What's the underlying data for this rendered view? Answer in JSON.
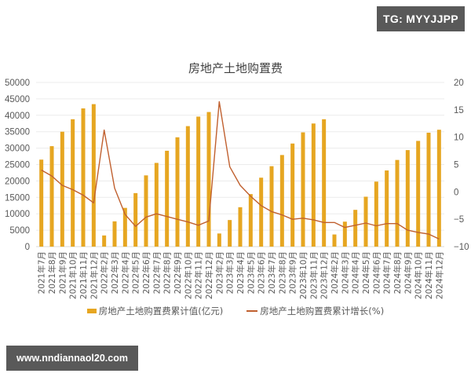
{
  "badges": {
    "top_right": "TG: MYYJJPP",
    "bottom_left": "www.nndiannaol20.com"
  },
  "chart_data": {
    "type": "bar",
    "title": "房地产土地购置费",
    "xlabel": "",
    "ylabel": "",
    "ylim": [
      0,
      50000
    ],
    "y2lim": [
      -10,
      20
    ],
    "left_ticks": [
      0,
      5000,
      10000,
      15000,
      20000,
      25000,
      30000,
      35000,
      40000,
      45000,
      50000
    ],
    "right_ticks": [
      -10,
      -5,
      0,
      5,
      10,
      15,
      20
    ],
    "grid": true,
    "legend_position": "bottom",
    "categories": [
      "2021年7月",
      "2021年8月",
      "2021年9月",
      "2021年10月",
      "2021年11月",
      "2021年12月",
      "2022年2月",
      "2022年3月",
      "2022年4月",
      "2022年5月",
      "2022年6月",
      "2022年7月",
      "2022年8月",
      "2022年9月",
      "2022年10月",
      "2022年11月",
      "2022年12月",
      "2023年2月",
      "2023年3月",
      "2023年4月",
      "2023年5月",
      "2023年6月",
      "2023年7月",
      "2023年8月",
      "2023年9月",
      "2023年10月",
      "2023年11月",
      "2023年12月",
      "2024年2月",
      "2024年3月",
      "2024年4月",
      "2024年5月",
      "2024年6月",
      "2024年7月",
      "2024年8月",
      "2024年9月",
      "2024年10月",
      "2024年11月",
      "2024年12月"
    ],
    "series": [
      {
        "name": "房地产土地购置费累计值(亿元)",
        "type": "bar",
        "axis": "left",
        "color": "#e6a621",
        "values": [
          26500,
          30600,
          35000,
          38800,
          42100,
          43400,
          3400,
          7700,
          11800,
          16300,
          21700,
          25500,
          29200,
          33300,
          36700,
          39600,
          41000,
          4000,
          8100,
          12000,
          16000,
          21000,
          24500,
          27900,
          31400,
          34800,
          37500,
          38800,
          3700,
          7600,
          11200,
          15200,
          19800,
          23200,
          26400,
          29400,
          32200,
          34700,
          35600
        ]
      },
      {
        "name": "房地产土地购置费累计增长(%)",
        "type": "line",
        "axis": "right",
        "color": "#c0602f",
        "values": [
          4.0,
          2.9,
          1.2,
          0.4,
          -0.6,
          -2.0,
          11.3,
          0.7,
          -4.1,
          -6.3,
          -4.6,
          -4.0,
          -4.5,
          -5.0,
          -5.5,
          -6.1,
          -5.3,
          16.5,
          4.6,
          1.2,
          -0.8,
          -2.5,
          -3.6,
          -4.2,
          -5.0,
          -4.8,
          -5.1,
          -5.6,
          -5.6,
          -6.5,
          -6.1,
          -5.7,
          -6.2,
          -5.8,
          -5.8,
          -7.0,
          -7.4,
          -7.7,
          -8.6
        ]
      }
    ]
  },
  "legend": {
    "bar_label": "房地产土地购置费累计值(亿元)",
    "line_label": "房地产土地购置费累计增长(%)"
  }
}
